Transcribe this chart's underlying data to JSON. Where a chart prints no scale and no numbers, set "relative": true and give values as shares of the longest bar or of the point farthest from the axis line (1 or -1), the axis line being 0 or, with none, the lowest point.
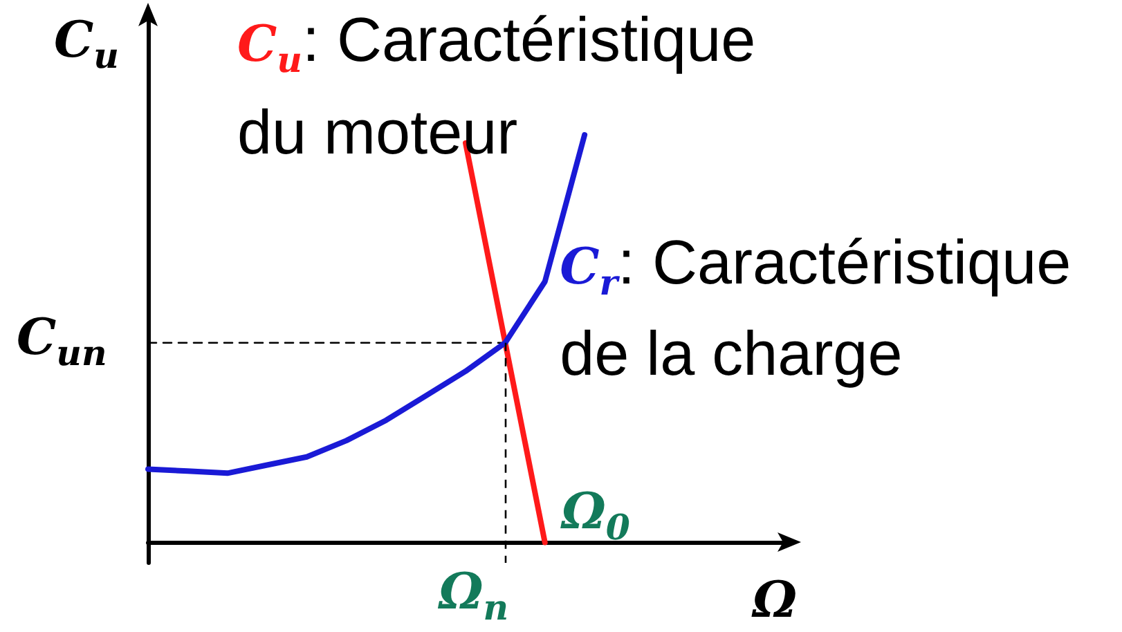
{
  "chart_data": {
    "type": "line",
    "relative": true,
    "xlabel": "Ω",
    "ylabel": "C$_{u}$",
    "marker": "none",
    "categories": [
      null,
      null,
      null,
      null,
      null,
      null,
      null,
      null,
      null,
      null,
      null,
      null,
      null,
      null,
      null,
      null,
      null
    ],
    "series": [
      {
        "name": "C$_{u}$: Caractéristique du moteur",
        "color": "#ff1a1a",
        "values": [
          null,
          null,
          null,
          null,
          null,
          null,
          null,
          null,
          0.98,
          null,
          0,
          null,
          null,
          null,
          null,
          null,
          null
        ]
      },
      {
        "name": "C$_{r}$: Caractéristique de la charge",
        "color": "#1a1ad6",
        "values": [
          0.18,
          0.175,
          0.17,
          0.19,
          0.21,
          0.25,
          0.3,
          0.36,
          0.42,
          0.49,
          0.64,
          1,
          null,
          null,
          null,
          null,
          null
        ]
      },
      {
        "color": "#000000",
        "line_style": "dashed",
        "values": [
          0.49,
          0.49,
          0.49,
          0.49,
          0.49,
          0.49,
          0.49,
          0.49,
          0.49,
          0.49,
          null,
          null,
          null,
          null,
          null,
          null,
          null
        ]
      }
    ],
    "annotations": [
      "C$_{un}$",
      "Ω$_{n}$",
      "Ω$_{0}$"
    ]
  }
}
